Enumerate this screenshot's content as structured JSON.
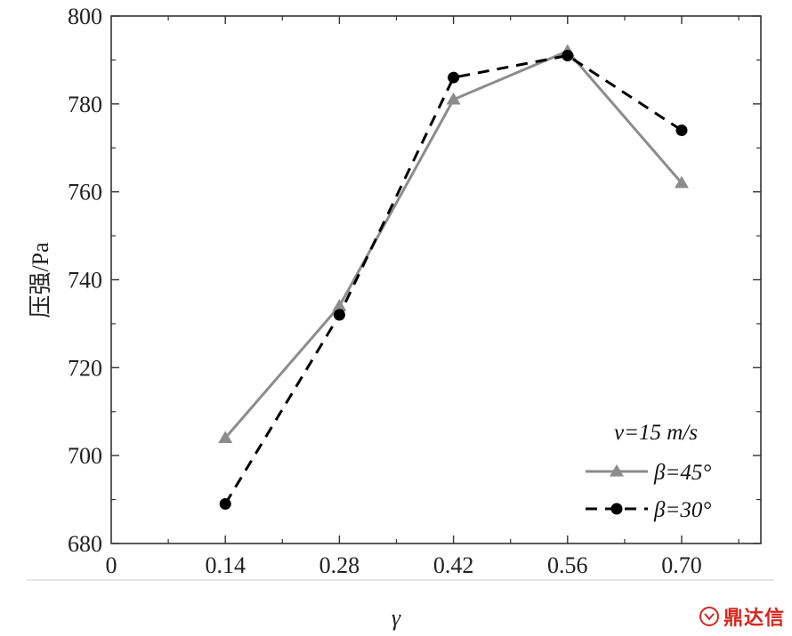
{
  "chart_data": {
    "type": "line",
    "xlabel": "γ",
    "ylabel": "压强/Pa",
    "x_categories": [
      "0.14",
      "0.28",
      "0.42",
      "0.56",
      "0.70"
    ],
    "x_origin_label": "0",
    "ylim": [
      680,
      800
    ],
    "yticks": [
      680,
      700,
      720,
      740,
      760,
      780,
      800
    ],
    "grid": false,
    "legend_position": "bottom-right",
    "legend_title": "v=15 m/s",
    "series": [
      {
        "name": "β=45°",
        "color": "#8c8c8c",
        "line": "solid",
        "marker": "triangle",
        "values": [
          704,
          734,
          781,
          792,
          762
        ]
      },
      {
        "name": "β=30°",
        "color": "#000000",
        "line": "dashed",
        "marker": "circle",
        "values": [
          689,
          732,
          786,
          791,
          774
        ]
      }
    ]
  },
  "watermark": {
    "text": "鼎达信"
  }
}
